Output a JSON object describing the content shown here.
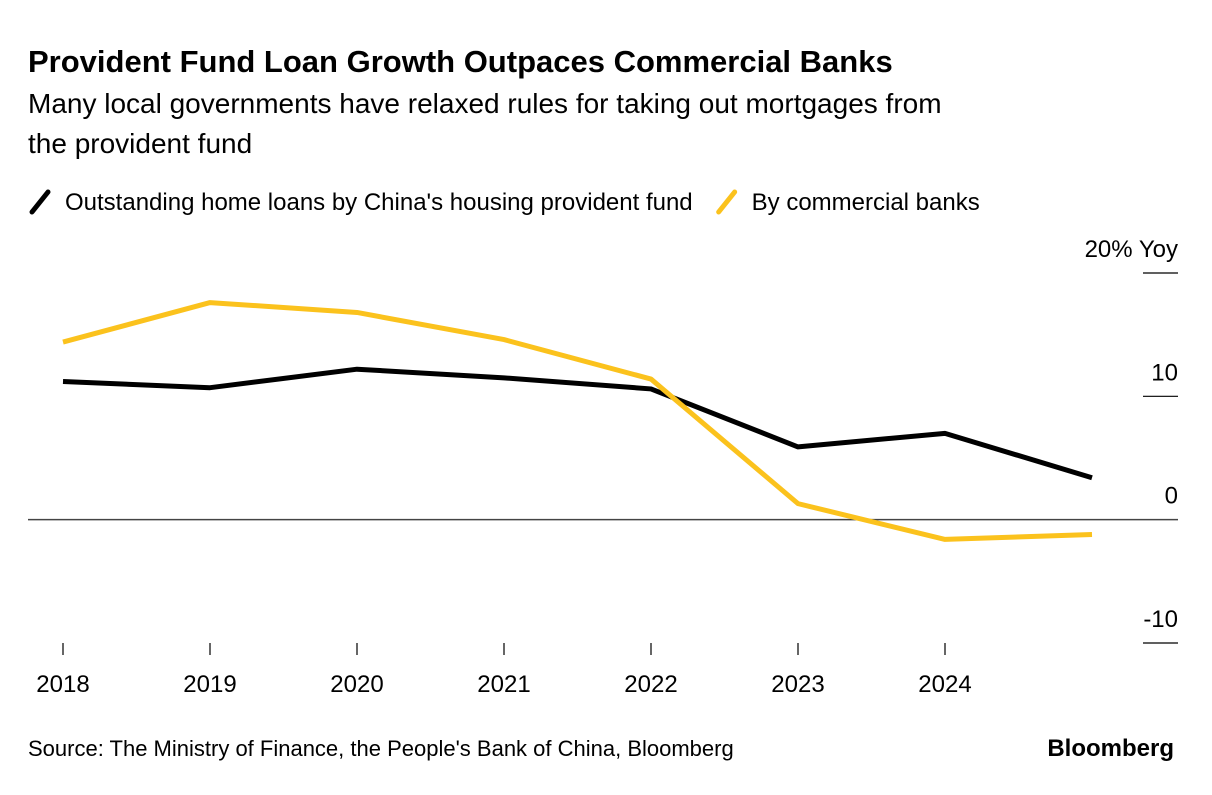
{
  "chart_data": {
    "type": "line",
    "title": "Provident Fund Loan Growth Outpaces Commercial Banks",
    "subtitle": [
      "Many local governments have relaxed rules for taking out mortgages from",
      "the provident fund"
    ],
    "categories": [
      "2018",
      "2019",
      "2020",
      "2021",
      "2022",
      "2023",
      "2024",
      null
    ],
    "series": [
      {
        "name": "Outstanding home loans by China's housing provident fund",
        "color": "#000000",
        "values": [
          11.2,
          10.7,
          12.2,
          11.5,
          10.6,
          5.9,
          7.0,
          3.4
        ]
      },
      {
        "name": "By commercial banks",
        "color": "#fbc21d",
        "values": [
          14.4,
          17.6,
          16.8,
          14.6,
          11.4,
          1.3,
          -1.6,
          -1.2
        ]
      }
    ],
    "ylim": [
      -10,
      20
    ],
    "yticks": [
      -10,
      0,
      10,
      {
        "value": 20,
        "label": "20% Yoy"
      }
    ],
    "y_axis_side": "right",
    "source": "Source: The Ministry of Finance, the People's Bank of China, Bloomberg",
    "brand": "Bloomberg"
  }
}
